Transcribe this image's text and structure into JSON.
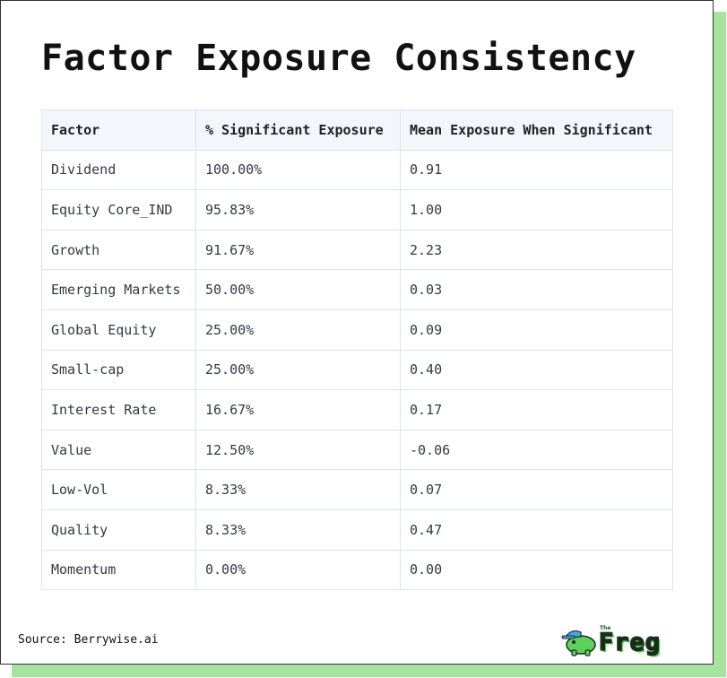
{
  "title": "Factor Exposure Consistency",
  "table": {
    "headers": [
      "Factor",
      "% Significant Exposure",
      "Mean Exposure When Significant"
    ],
    "rows": [
      [
        "Dividend",
        "100.00%",
        "0.91"
      ],
      [
        "Equity Core_IND",
        "95.83%",
        "1.00"
      ],
      [
        "Growth",
        "91.67%",
        "2.23"
      ],
      [
        "Emerging Markets",
        "50.00%",
        "0.03"
      ],
      [
        "Global Equity",
        "25.00%",
        "0.09"
      ],
      [
        "Small-cap",
        "25.00%",
        "0.40"
      ],
      [
        "Interest Rate",
        "16.67%",
        "0.17"
      ],
      [
        "Value",
        "12.50%",
        "-0.06"
      ],
      [
        "Low-Vol",
        "8.33%",
        "0.07"
      ],
      [
        "Quality",
        "8.33%",
        "0.47"
      ],
      [
        "Momentum",
        "0.00%",
        "0.00"
      ]
    ]
  },
  "footer": {
    "source": "Source: Berrywise.ai",
    "logo_small": "The",
    "logo_word": "Freg"
  },
  "colors": {
    "shadow": "#a6e3a1",
    "header_bg": "#f3f6fa",
    "logo_green": "#5bd35b"
  },
  "icons": [
    "frog-mascot-icon"
  ]
}
